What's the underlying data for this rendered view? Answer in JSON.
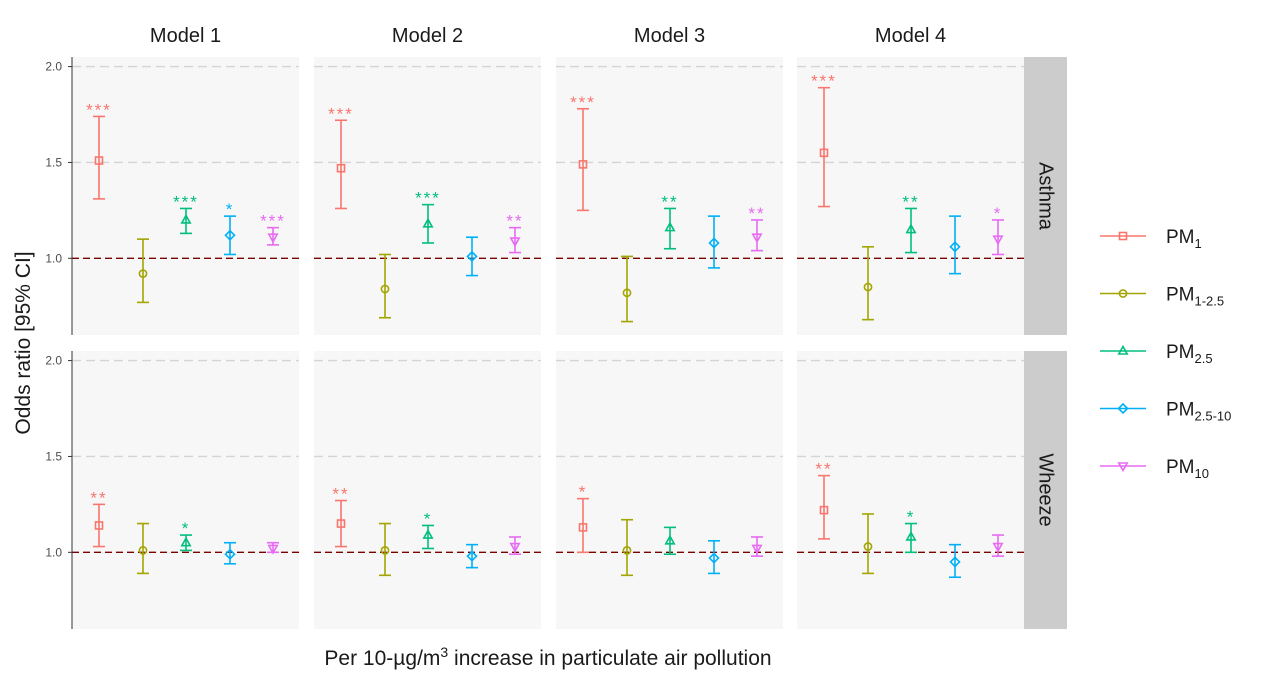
{
  "chart_data": {
    "type": "scatter",
    "subtype": "faceted point-range (odds ratio with 95% CI error bars)",
    "xlabel": "Per 10-µg/m",
    "xlabel_sup": "3",
    "xlabel_rest": " increase in particulate air pollution",
    "ylabel": "Odds ratio [95% CI]",
    "ylim": [
      0.6,
      2.05
    ],
    "yticks": [
      "1.0",
      "1.5",
      "2.0"
    ],
    "ytick_values": [
      1.0,
      1.5,
      2.0
    ],
    "reference_line": 1.0,
    "grid": true,
    "legend_position": "right",
    "columns": [
      "Model 1",
      "Model 2",
      "Model 3",
      "Model 4"
    ],
    "rows": [
      "Asthma",
      "Wheeze"
    ],
    "series": [
      {
        "name": "PM",
        "sub": "1",
        "color": "#F8766D",
        "shape": "square"
      },
      {
        "name": "PM",
        "sub": "1-2.5",
        "color": "#A3A500",
        "shape": "circle"
      },
      {
        "name": "PM",
        "sub": "2.5",
        "color": "#00BF7D",
        "shape": "triangle-up"
      },
      {
        "name": "PM",
        "sub": "2.5-10",
        "color": "#00B0F6",
        "shape": "diamond"
      },
      {
        "name": "PM",
        "sub": "10",
        "color": "#E76BF3",
        "shape": "triangle-down"
      }
    ],
    "panels": [
      {
        "row": "Asthma",
        "col": "Model 1",
        "points": [
          {
            "or": 1.51,
            "lo": 1.31,
            "hi": 1.74,
            "sig": "***"
          },
          {
            "or": 0.92,
            "lo": 0.77,
            "hi": 1.1,
            "sig": ""
          },
          {
            "or": 1.2,
            "lo": 1.13,
            "hi": 1.26,
            "sig": "***"
          },
          {
            "or": 1.12,
            "lo": 1.02,
            "hi": 1.22,
            "sig": "*"
          },
          {
            "or": 1.11,
            "lo": 1.07,
            "hi": 1.16,
            "sig": "***"
          }
        ]
      },
      {
        "row": "Asthma",
        "col": "Model 2",
        "points": [
          {
            "or": 1.47,
            "lo": 1.26,
            "hi": 1.72,
            "sig": "***"
          },
          {
            "or": 0.84,
            "lo": 0.69,
            "hi": 1.02,
            "sig": ""
          },
          {
            "or": 1.18,
            "lo": 1.08,
            "hi": 1.28,
            "sig": "***"
          },
          {
            "or": 1.01,
            "lo": 0.91,
            "hi": 1.11,
            "sig": ""
          },
          {
            "or": 1.09,
            "lo": 1.03,
            "hi": 1.16,
            "sig": "**"
          }
        ]
      },
      {
        "row": "Asthma",
        "col": "Model 3",
        "points": [
          {
            "or": 1.49,
            "lo": 1.25,
            "hi": 1.78,
            "sig": "***"
          },
          {
            "or": 0.82,
            "lo": 0.67,
            "hi": 1.01,
            "sig": ""
          },
          {
            "or": 1.16,
            "lo": 1.05,
            "hi": 1.26,
            "sig": "**"
          },
          {
            "or": 1.08,
            "lo": 0.95,
            "hi": 1.22,
            "sig": ""
          },
          {
            "or": 1.11,
            "lo": 1.04,
            "hi": 1.2,
            "sig": "**"
          }
        ]
      },
      {
        "row": "Asthma",
        "col": "Model 4",
        "points": [
          {
            "or": 1.55,
            "lo": 1.27,
            "hi": 1.89,
            "sig": "***"
          },
          {
            "or": 0.85,
            "lo": 0.68,
            "hi": 1.06,
            "sig": ""
          },
          {
            "or": 1.15,
            "lo": 1.03,
            "hi": 1.26,
            "sig": "**"
          },
          {
            "or": 1.06,
            "lo": 0.92,
            "hi": 1.22,
            "sig": ""
          },
          {
            "or": 1.1,
            "lo": 1.02,
            "hi": 1.2,
            "sig": "*"
          }
        ]
      },
      {
        "row": "Wheeze",
        "col": "Model 1",
        "points": [
          {
            "or": 1.14,
            "lo": 1.03,
            "hi": 1.25,
            "sig": "**"
          },
          {
            "or": 1.01,
            "lo": 0.89,
            "hi": 1.15,
            "sig": ""
          },
          {
            "or": 1.05,
            "lo": 1.01,
            "hi": 1.09,
            "sig": "*"
          },
          {
            "or": 0.99,
            "lo": 0.94,
            "hi": 1.05,
            "sig": ""
          },
          {
            "or": 1.02,
            "lo": 1.0,
            "hi": 1.05,
            "sig": ""
          }
        ]
      },
      {
        "row": "Wheeze",
        "col": "Model 2",
        "points": [
          {
            "or": 1.15,
            "lo": 1.03,
            "hi": 1.27,
            "sig": "**"
          },
          {
            "or": 1.01,
            "lo": 0.88,
            "hi": 1.15,
            "sig": ""
          },
          {
            "or": 1.09,
            "lo": 1.02,
            "hi": 1.14,
            "sig": "*"
          },
          {
            "or": 0.98,
            "lo": 0.92,
            "hi": 1.04,
            "sig": ""
          },
          {
            "or": 1.03,
            "lo": 0.99,
            "hi": 1.08,
            "sig": ""
          }
        ]
      },
      {
        "row": "Wheeze",
        "col": "Model 3",
        "points": [
          {
            "or": 1.13,
            "lo": 1.0,
            "hi": 1.28,
            "sig": "*"
          },
          {
            "or": 1.01,
            "lo": 0.88,
            "hi": 1.17,
            "sig": ""
          },
          {
            "or": 1.06,
            "lo": 0.99,
            "hi": 1.13,
            "sig": ""
          },
          {
            "or": 0.97,
            "lo": 0.89,
            "hi": 1.06,
            "sig": ""
          },
          {
            "or": 1.02,
            "lo": 0.98,
            "hi": 1.08,
            "sig": ""
          }
        ]
      },
      {
        "row": "Wheeze",
        "col": "Model 4",
        "points": [
          {
            "or": 1.22,
            "lo": 1.07,
            "hi": 1.4,
            "sig": "**"
          },
          {
            "or": 1.03,
            "lo": 0.89,
            "hi": 1.2,
            "sig": ""
          },
          {
            "or": 1.08,
            "lo": 1.0,
            "hi": 1.15,
            "sig": "*"
          },
          {
            "or": 0.95,
            "lo": 0.87,
            "hi": 1.04,
            "sig": ""
          },
          {
            "or": 1.03,
            "lo": 0.98,
            "hi": 1.09,
            "sig": ""
          }
        ]
      }
    ]
  }
}
